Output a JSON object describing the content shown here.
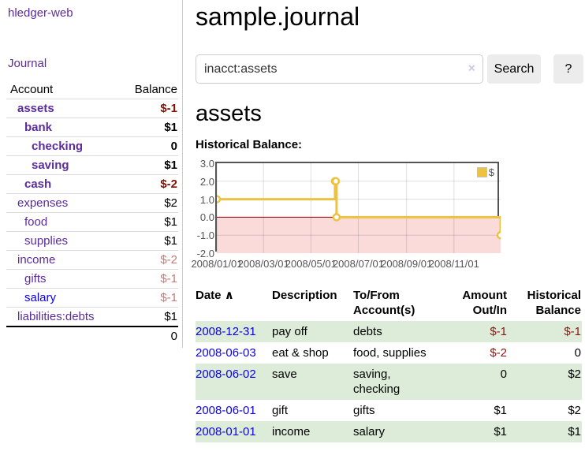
{
  "app": {
    "title": "hledger-web"
  },
  "sidebar": {
    "journal_link": "Journal",
    "table": {
      "account_header": "Account",
      "balance_header": "Balance",
      "rows": [
        {
          "account": "assets",
          "balance": "$-1",
          "indent": 1,
          "bold": true,
          "balance_tone": "negative-strong"
        },
        {
          "account": "bank",
          "balance": "$1",
          "indent": 2,
          "bold": true,
          "balance_tone": "normal"
        },
        {
          "account": "checking",
          "balance": "0",
          "indent": 3,
          "bold": true,
          "balance_tone": "normal"
        },
        {
          "account": "saving",
          "balance": "$1",
          "indent": 3,
          "bold": true,
          "balance_tone": "normal"
        },
        {
          "account": "cash",
          "balance": "$-2",
          "indent": 2,
          "bold": true,
          "balance_tone": "negative-strong"
        },
        {
          "account": "expenses",
          "balance": "$2",
          "indent": 1,
          "bold": false,
          "balance_tone": "normal"
        },
        {
          "account": "food",
          "balance": "$1",
          "indent": 2,
          "bold": false,
          "balance_tone": "normal"
        },
        {
          "account": "supplies",
          "balance": "$1",
          "indent": 2,
          "bold": false,
          "balance_tone": "normal"
        },
        {
          "account": "income",
          "balance": "$-2",
          "indent": 1,
          "bold": false,
          "balance_tone": "negative-soft"
        },
        {
          "account": "gifts",
          "balance": "$-1",
          "indent": 2,
          "bold": false,
          "balance_tone": "negative-soft"
        },
        {
          "account": "salary",
          "balance": "$-1",
          "indent": 2,
          "bold": false,
          "balance_tone": "negative-soft",
          "link_color": "blue"
        },
        {
          "account": "liabilities:debts",
          "balance": "$1",
          "indent": 1,
          "bold": false,
          "balance_tone": "normal"
        }
      ],
      "total": "0"
    }
  },
  "main": {
    "title": "sample.journal",
    "search": {
      "value": "inacct:assets",
      "clear_icon": "×",
      "button_label": "Search",
      "help_label": "?"
    },
    "account_heading": "assets",
    "chart_label": "Historical Balance:",
    "register": {
      "sort_icon": "∧",
      "columns": {
        "date": "Date",
        "description": "Description",
        "accounts": "To/From Account(s)",
        "amount": "Amount Out/In",
        "balance": "Historical Balance"
      },
      "rows": [
        {
          "date": "2008-12-31",
          "description": "pay off",
          "accounts": "debts",
          "amount": "$-1",
          "balance": "$-1",
          "amount_negative": true,
          "balance_negative": true,
          "highlight": true
        },
        {
          "date": "2008-06-03",
          "description": "eat & shop",
          "accounts": "food, supplies",
          "amount": "$-2",
          "balance": "0",
          "amount_negative": true,
          "balance_negative": false,
          "highlight": false
        },
        {
          "date": "2008-06-02",
          "description": "save",
          "accounts": "saving, checking",
          "amount": "0",
          "balance": "$2",
          "amount_negative": false,
          "balance_negative": false,
          "highlight": true
        },
        {
          "date": "2008-06-01",
          "description": "gift",
          "accounts": "gifts",
          "amount": "$1",
          "balance": "$2",
          "amount_negative": false,
          "balance_negative": false,
          "highlight": false
        },
        {
          "date": "2008-01-01",
          "description": "income",
          "accounts": "salary",
          "amount": "$1",
          "balance": "$1",
          "amount_negative": false,
          "balance_negative": false,
          "highlight": true
        }
      ]
    }
  },
  "chart_data": {
    "type": "line",
    "style": "step-after",
    "title": "Historical Balance",
    "series": [
      {
        "name": "$",
        "color": "#EDC240",
        "points": [
          [
            "2008-01-01",
            1
          ],
          [
            "2008-06-01",
            2
          ],
          [
            "2008-06-02",
            2
          ],
          [
            "2008-06-03",
            0
          ],
          [
            "2008-12-31",
            -1
          ]
        ]
      }
    ],
    "xlim": [
      "2008-01-01",
      "2008-12-31"
    ],
    "ylim": [
      -2,
      3
    ],
    "x_ticks": [
      "2008/01/01",
      "2008/03/01",
      "2008/05/01",
      "2008/07/01",
      "2008/09/01",
      "2008/11/01"
    ],
    "y_ticks": [
      "3.0",
      "2.0",
      "1.0",
      "0.0",
      "-1.0",
      "-2.0"
    ],
    "legend_position": "top-right",
    "grid": true,
    "negative_region_color": "#fbdada",
    "zero_line_color": "#8b0000"
  },
  "colors": {
    "accent_purple": "#5b2c9a",
    "link_blue": "#0c00e8",
    "negative_strong": "#7f1200",
    "negative_soft": "#bd7b76",
    "negative_table": "#8b1713",
    "row_highlight_green": "#dcecd8",
    "series_yellow": "#EDC240",
    "negative_region_pink": "#fbdada",
    "zero_line_maroon": "#8b0000"
  }
}
